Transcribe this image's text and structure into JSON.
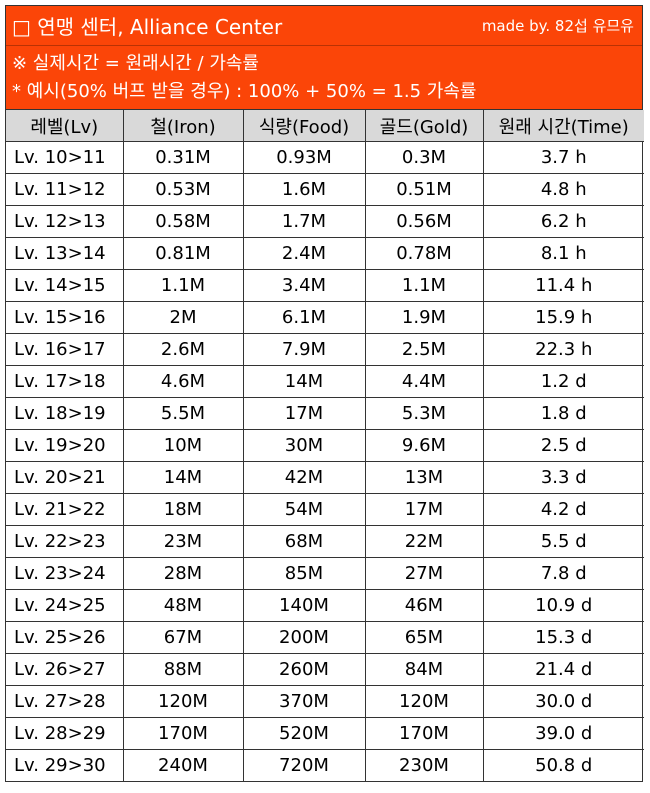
{
  "header": {
    "title": "□ 연맹 센터, Alliance Center",
    "credit": "made by. 82섭 유므유"
  },
  "notes": [
    "※ 실제시간 = 원래시간 / 가속률",
    "* 예시(50% 버프 받을 경우) : 100% + 50% = 1.5 가속률"
  ],
  "colors": {
    "header_bg": "#fb4508",
    "header_text": "#ffffff",
    "column_header_bg": "#d9d9d9"
  },
  "table": {
    "columns": [
      "레벨(Lv)",
      "철(Iron)",
      "식량(Food)",
      "골드(Gold)",
      "원래 시간(Time)"
    ],
    "rows": [
      [
        "Lv. 10>11",
        "0.31M",
        "0.93M",
        "0.3M",
        "3.7 h"
      ],
      [
        "Lv. 11>12",
        "0.53M",
        "1.6M",
        "0.51M",
        "4.8 h"
      ],
      [
        "Lv. 12>13",
        "0.58M",
        "1.7M",
        "0.56M",
        "6.2 h"
      ],
      [
        "Lv. 13>14",
        "0.81M",
        "2.4M",
        "0.78M",
        "8.1 h"
      ],
      [
        "Lv. 14>15",
        "1.1M",
        "3.4M",
        "1.1M",
        "11.4 h"
      ],
      [
        "Lv. 15>16",
        "2M",
        "6.1M",
        "1.9M",
        "15.9 h"
      ],
      [
        "Lv. 16>17",
        "2.6M",
        "7.9M",
        "2.5M",
        "22.3 h"
      ],
      [
        "Lv. 17>18",
        "4.6M",
        "14M",
        "4.4M",
        "1.2 d"
      ],
      [
        "Lv. 18>19",
        "5.5M",
        "17M",
        "5.3M",
        "1.8 d"
      ],
      [
        "Lv. 19>20",
        "10M",
        "30M",
        "9.6M",
        "2.5 d"
      ],
      [
        "Lv. 20>21",
        "14M",
        "42M",
        "13M",
        "3.3 d"
      ],
      [
        "Lv. 21>22",
        "18M",
        "54M",
        "17M",
        "4.2 d"
      ],
      [
        "Lv. 22>23",
        "23M",
        "68M",
        "22M",
        "5.5 d"
      ],
      [
        "Lv. 23>24",
        "28M",
        "85M",
        "27M",
        "7.8 d"
      ],
      [
        "Lv. 24>25",
        "48M",
        "140M",
        "46M",
        "10.9 d"
      ],
      [
        "Lv. 25>26",
        "67M",
        "200M",
        "65M",
        "15.3 d"
      ],
      [
        "Lv. 26>27",
        "88M",
        "260M",
        "84M",
        "21.4 d"
      ],
      [
        "Lv. 27>28",
        "120M",
        "370M",
        "120M",
        "30.0 d"
      ],
      [
        "Lv. 28>29",
        "170M",
        "520M",
        "170M",
        "39.0 d"
      ],
      [
        "Lv. 29>30",
        "240M",
        "720M",
        "230M",
        "50.8 d"
      ]
    ]
  }
}
